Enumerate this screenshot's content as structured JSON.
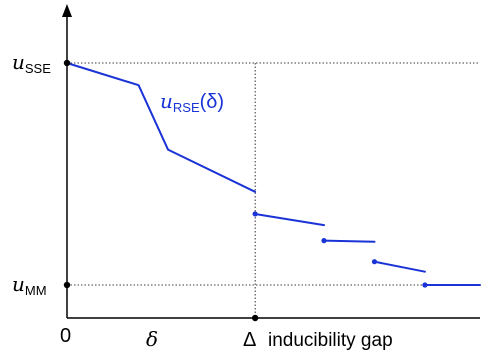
{
  "chart_data": {
    "type": "line",
    "title": "",
    "xlabel": "",
    "ylabel": "",
    "colors": {
      "series": "#1a33d6",
      "axis": "#000000",
      "guide": "#000000"
    },
    "x_ticks": [
      {
        "label_main": "0",
        "label_sub": "",
        "value": 0
      },
      {
        "label_main": "δ",
        "label_sub": "",
        "value": 1
      },
      {
        "label_main": "Δ",
        "label_sub": "",
        "value": 2.05,
        "extra": "inducibility gap"
      }
    ],
    "y_ticks": [
      {
        "label_main": "u",
        "label_sub": "SSE",
        "value": 1.0
      },
      {
        "label_main": "u",
        "label_sub": "MM",
        "value": 0.0
      }
    ],
    "series": [
      {
        "label_main": "u",
        "label_sub": "RSE",
        "label_suffix": "(δ)",
        "segments": [
          [
            [
              0.0,
              1.0
            ],
            [
              0.78,
              0.9
            ],
            [
              1.1,
              0.61
            ],
            [
              2.05,
              0.42
            ]
          ],
          [
            [
              2.05,
              0.32
            ],
            [
              2.8,
              0.27
            ]
          ],
          [
            [
              2.8,
              0.2
            ],
            [
              3.35,
              0.195
            ]
          ],
          [
            [
              3.35,
              0.105
            ],
            [
              3.9,
              0.06
            ]
          ],
          [
            [
              3.9,
              0.0
            ],
            [
              4.5,
              0.0
            ]
          ]
        ]
      }
    ],
    "xlim": [
      0,
      4.5
    ],
    "ylim": [
      0,
      1.0
    ],
    "grid": false,
    "legend": "none"
  }
}
